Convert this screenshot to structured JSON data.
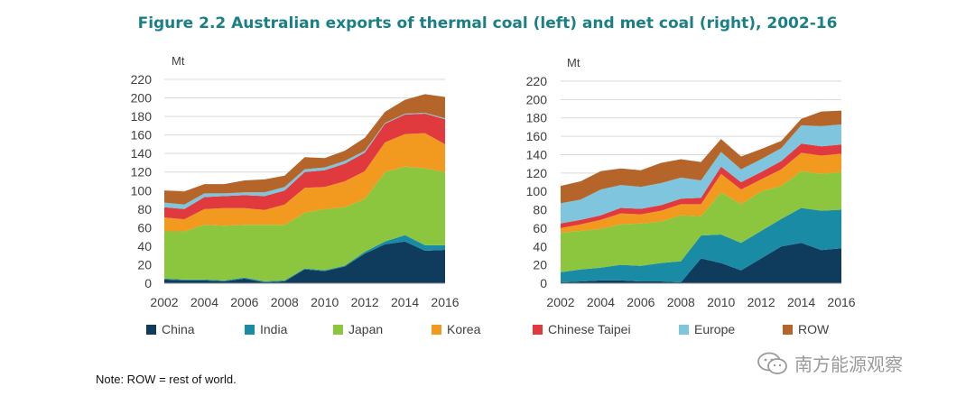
{
  "title": "Figure 2.2  Australian exports of thermal coal (left) and met coal (right), 2002-16",
  "note": "Note: ROW = rest of world.",
  "watermark": "南方能源观察",
  "legend": [
    {
      "name": "China",
      "color": "#0f3c5c"
    },
    {
      "name": "India",
      "color": "#1a8ba5"
    },
    {
      "name": "Japan",
      "color": "#8cc63f"
    },
    {
      "name": "Korea",
      "color": "#f29a1f"
    },
    {
      "name": "Chinese Taipei",
      "color": "#e03a3e"
    },
    {
      "name": "Europe",
      "color": "#7ec5dd"
    },
    {
      "name": "ROW",
      "color": "#b5652a"
    }
  ],
  "chart_data": [
    {
      "type": "area",
      "stacked": true,
      "title": "Thermal coal",
      "ylabel": "Mt",
      "ylim": [
        0,
        220
      ],
      "yticks": [
        0,
        20,
        40,
        60,
        80,
        100,
        120,
        140,
        160,
        180,
        200,
        220
      ],
      "xticks": [
        2002,
        2004,
        2006,
        2008,
        2010,
        2012,
        2014,
        2016
      ],
      "x": [
        2002,
        2003,
        2004,
        2005,
        2006,
        2007,
        2008,
        2009,
        2010,
        2011,
        2012,
        2013,
        2014,
        2015,
        2016
      ],
      "series": [
        {
          "name": "China",
          "values": [
            4,
            3,
            3,
            2,
            5,
            1,
            2,
            15,
            13,
            18,
            32,
            42,
            45,
            35,
            36
          ]
        },
        {
          "name": "India",
          "values": [
            1,
            1,
            1,
            1,
            1,
            1,
            1,
            1,
            1,
            1,
            2,
            3,
            7,
            6,
            5
          ]
        },
        {
          "name": "Japan",
          "values": [
            51,
            52,
            59,
            59,
            57,
            61,
            60,
            60,
            66,
            63,
            57,
            75,
            74,
            83,
            79
          ]
        },
        {
          "name": "Korea",
          "values": [
            15,
            13,
            17,
            19,
            18,
            16,
            22,
            27,
            24,
            28,
            30,
            32,
            35,
            38,
            30
          ]
        },
        {
          "name": "Chinese Taipei",
          "values": [
            11,
            11,
            13,
            13,
            14,
            15,
            15,
            17,
            18,
            19,
            20,
            20,
            21,
            21,
            27
          ]
        },
        {
          "name": "Europe",
          "values": [
            5,
            5,
            4,
            3,
            3,
            4,
            4,
            3,
            3,
            3,
            2,
            1,
            1,
            1,
            1
          ]
        },
        {
          "name": "ROW",
          "values": [
            13,
            14,
            10,
            10,
            13,
            14,
            12,
            13,
            10,
            11,
            14,
            12,
            15,
            20,
            23
          ]
        }
      ]
    },
    {
      "type": "area",
      "stacked": true,
      "title": "Met coal",
      "ylabel": "Mt",
      "ylim": [
        0,
        220
      ],
      "yticks": [
        0,
        20,
        40,
        60,
        80,
        100,
        120,
        140,
        160,
        180,
        200,
        220
      ],
      "xticks": [
        2002,
        2004,
        2006,
        2008,
        2010,
        2012,
        2014,
        2016
      ],
      "x": [
        2002,
        2003,
        2004,
        2005,
        2006,
        2007,
        2008,
        2009,
        2010,
        2011,
        2012,
        2013,
        2014,
        2015,
        2016
      ],
      "series": [
        {
          "name": "China",
          "values": [
            1,
            2,
            3,
            3,
            2,
            2,
            1,
            27,
            22,
            14,
            27,
            40,
            44,
            36,
            38
          ]
        },
        {
          "name": "India",
          "values": [
            11,
            13,
            14,
            17,
            17,
            20,
            23,
            25,
            31,
            30,
            30,
            30,
            38,
            43,
            42
          ]
        },
        {
          "name": "Japan",
          "values": [
            43,
            42,
            42,
            44,
            46,
            45,
            50,
            21,
            46,
            42,
            43,
            36,
            40,
            40,
            41
          ]
        },
        {
          "name": "Korea",
          "values": [
            5,
            7,
            10,
            12,
            10,
            12,
            12,
            13,
            20,
            16,
            13,
            18,
            20,
            20,
            20
          ]
        },
        {
          "name": "Chinese Taipei",
          "values": [
            5,
            5,
            5,
            6,
            6,
            6,
            6,
            7,
            8,
            8,
            8,
            9,
            10,
            10,
            10
          ]
        },
        {
          "name": "Europe",
          "values": [
            22,
            22,
            28,
            25,
            24,
            24,
            23,
            19,
            16,
            14,
            14,
            14,
            20,
            22,
            22
          ]
        },
        {
          "name": "ROW",
          "values": [
            19,
            20,
            20,
            18,
            18,
            22,
            20,
            20,
            14,
            14,
            11,
            8,
            7,
            16,
            15
          ]
        }
      ]
    }
  ]
}
